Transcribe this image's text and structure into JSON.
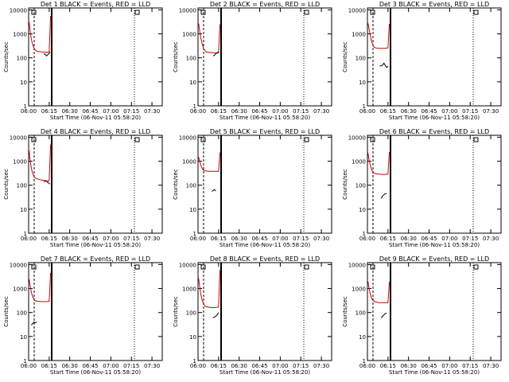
{
  "chart_data": {
    "type": "line",
    "xticks": [
      "06:00",
      "06:15",
      "06:30",
      "06:45",
      "07:00",
      "07:15",
      "07:30"
    ],
    "yticks": [
      "1",
      "10",
      "100",
      "1000",
      "10000"
    ],
    "ylim": [
      1,
      12000
    ],
    "xlabel": "Start Time (06-Nov-11 05:58:20)",
    "ylabel": "Counts/sec",
    "grid": false,
    "series_colors": {
      "Events": "#000000",
      "LLD": "#cc0000"
    },
    "panels": [
      {
        "title": "Det 1 BLACK = Events, RED = LLD",
        "lld": [
          [
            0,
            3800
          ],
          [
            0.5,
            2600
          ],
          [
            1,
            1500
          ],
          [
            2,
            600
          ],
          [
            3,
            340
          ],
          [
            4,
            250
          ],
          [
            5,
            210
          ],
          [
            6,
            190
          ],
          [
            8,
            180
          ],
          [
            10,
            175
          ],
          [
            12,
            175
          ],
          [
            14,
            170
          ],
          [
            15,
            180
          ],
          [
            16,
            5500
          ]
        ],
        "events": [
          [
            11,
            150
          ],
          [
            12,
            140
          ],
          [
            13,
            120
          ],
          [
            14,
            135
          ],
          [
            15,
            150
          ],
          [
            15.5,
            180
          ]
        ]
      },
      {
        "title": "Det 2 BLACK = Events, RED = LLD",
        "lld": [
          [
            0,
            3000
          ],
          [
            0.5,
            2500
          ],
          [
            1,
            1600
          ],
          [
            2,
            700
          ],
          [
            3,
            380
          ],
          [
            4,
            250
          ],
          [
            5,
            200
          ],
          [
            6,
            175
          ],
          [
            8,
            170
          ],
          [
            10,
            165
          ],
          [
            12,
            160
          ],
          [
            14,
            160
          ],
          [
            15,
            160
          ],
          [
            16,
            2500
          ]
        ],
        "events": [
          [
            11,
            120
          ],
          [
            12,
            130
          ],
          [
            13,
            150
          ],
          [
            14,
            160
          ],
          [
            15,
            180
          ]
        ]
      },
      {
        "title": "Det 3 BLACK = Events, RED = LLD",
        "lld": [
          [
            0,
            3000
          ],
          [
            0.5,
            2600
          ],
          [
            1,
            1800
          ],
          [
            2,
            900
          ],
          [
            3,
            500
          ],
          [
            4,
            330
          ],
          [
            5,
            280
          ],
          [
            6,
            260
          ],
          [
            8,
            250
          ],
          [
            10,
            250
          ],
          [
            12,
            250
          ],
          [
            14,
            255
          ],
          [
            15,
            260
          ],
          [
            16,
            2600
          ]
        ],
        "events": [
          [
            9,
            45
          ],
          [
            11,
            50
          ],
          [
            12,
            60
          ],
          [
            14,
            40
          ],
          [
            15,
            45
          ]
        ]
      },
      {
        "title": "Det 4 BLACK = Events, RED = LLD",
        "lld": [
          [
            0,
            3500
          ],
          [
            0.5,
            2300
          ],
          [
            1,
            1200
          ],
          [
            2,
            500
          ],
          [
            3,
            300
          ],
          [
            4,
            230
          ],
          [
            5,
            200
          ],
          [
            6,
            185
          ],
          [
            8,
            170
          ],
          [
            10,
            160
          ],
          [
            12,
            155
          ],
          [
            14,
            150
          ],
          [
            15,
            150
          ],
          [
            16,
            5000
          ]
        ],
        "events": [
          [
            11,
            140
          ],
          [
            12,
            150
          ],
          [
            13,
            145
          ],
          [
            14,
            130
          ],
          [
            15,
            120
          ],
          [
            15.5,
            110
          ]
        ]
      },
      {
        "title": "Det 5 BLACK = Events, RED = LLD",
        "lld": [
          [
            0,
            1600
          ],
          [
            0.5,
            1400
          ],
          [
            1,
            1100
          ],
          [
            2,
            700
          ],
          [
            3,
            500
          ],
          [
            4,
            420
          ],
          [
            5,
            400
          ],
          [
            6,
            390
          ],
          [
            8,
            380
          ],
          [
            10,
            380
          ],
          [
            12,
            380
          ],
          [
            14,
            380
          ],
          [
            15,
            380
          ],
          [
            16,
            2300
          ]
        ],
        "events": [
          [
            10,
            55
          ],
          [
            11,
            60
          ],
          [
            12,
            65
          ],
          [
            13,
            58
          ]
        ]
      },
      {
        "title": "Det 6 BLACK = Events, RED = LLD",
        "lld": [
          [
            0,
            2500
          ],
          [
            0.5,
            2000
          ],
          [
            1,
            1300
          ],
          [
            2,
            700
          ],
          [
            3,
            450
          ],
          [
            4,
            350
          ],
          [
            5,
            320
          ],
          [
            6,
            300
          ],
          [
            8,
            290
          ],
          [
            10,
            285
          ],
          [
            12,
            280
          ],
          [
            14,
            285
          ],
          [
            15,
            290
          ],
          [
            16,
            2400
          ]
        ],
        "events": [
          [
            10,
            28
          ],
          [
            11,
            35
          ],
          [
            12,
            40
          ],
          [
            13,
            44
          ],
          [
            14,
            45
          ]
        ]
      },
      {
        "title": "Det 7 BLACK = Events, RED = LLD",
        "lld": [
          [
            0,
            2800
          ],
          [
            0.5,
            2200
          ],
          [
            1,
            1400
          ],
          [
            2,
            700
          ],
          [
            3,
            450
          ],
          [
            4,
            350
          ],
          [
            5,
            310
          ],
          [
            6,
            300
          ],
          [
            8,
            290
          ],
          [
            10,
            285
          ],
          [
            12,
            285
          ],
          [
            14,
            290
          ],
          [
            15,
            290
          ],
          [
            16,
            4500
          ]
        ],
        "events": [
          [
            2,
            30
          ],
          [
            3,
            35
          ],
          [
            4,
            40
          ],
          [
            5,
            38
          ],
          [
            6,
            40
          ]
        ]
      },
      {
        "title": "Det 8 BLACK = Events, RED = LLD",
        "lld": [
          [
            0,
            3000
          ],
          [
            0.5,
            2400
          ],
          [
            1,
            1500
          ],
          [
            2,
            600
          ],
          [
            3,
            320
          ],
          [
            4,
            230
          ],
          [
            5,
            190
          ],
          [
            6,
            175
          ],
          [
            8,
            165
          ],
          [
            10,
            160
          ],
          [
            12,
            160
          ],
          [
            14,
            165
          ],
          [
            15,
            170
          ],
          [
            16,
            6000
          ]
        ],
        "events": [
          [
            11,
            60
          ],
          [
            12,
            65
          ],
          [
            13,
            70
          ],
          [
            14,
            80
          ],
          [
            15,
            100
          ]
        ]
      },
      {
        "title": "Det 9 BLACK = Events, RED = LLD",
        "lld": [
          [
            0,
            2200
          ],
          [
            0.5,
            1800
          ],
          [
            1,
            1200
          ],
          [
            2,
            600
          ],
          [
            3,
            400
          ],
          [
            4,
            320
          ],
          [
            5,
            290
          ],
          [
            6,
            275
          ],
          [
            8,
            260
          ],
          [
            10,
            255
          ],
          [
            12,
            255
          ],
          [
            14,
            260
          ],
          [
            15,
            260
          ],
          [
            16,
            1900
          ]
        ],
        "events": [
          [
            10,
            60
          ],
          [
            11,
            70
          ],
          [
            12,
            80
          ],
          [
            13,
            90
          ],
          [
            14,
            95
          ]
        ]
      }
    ]
  }
}
